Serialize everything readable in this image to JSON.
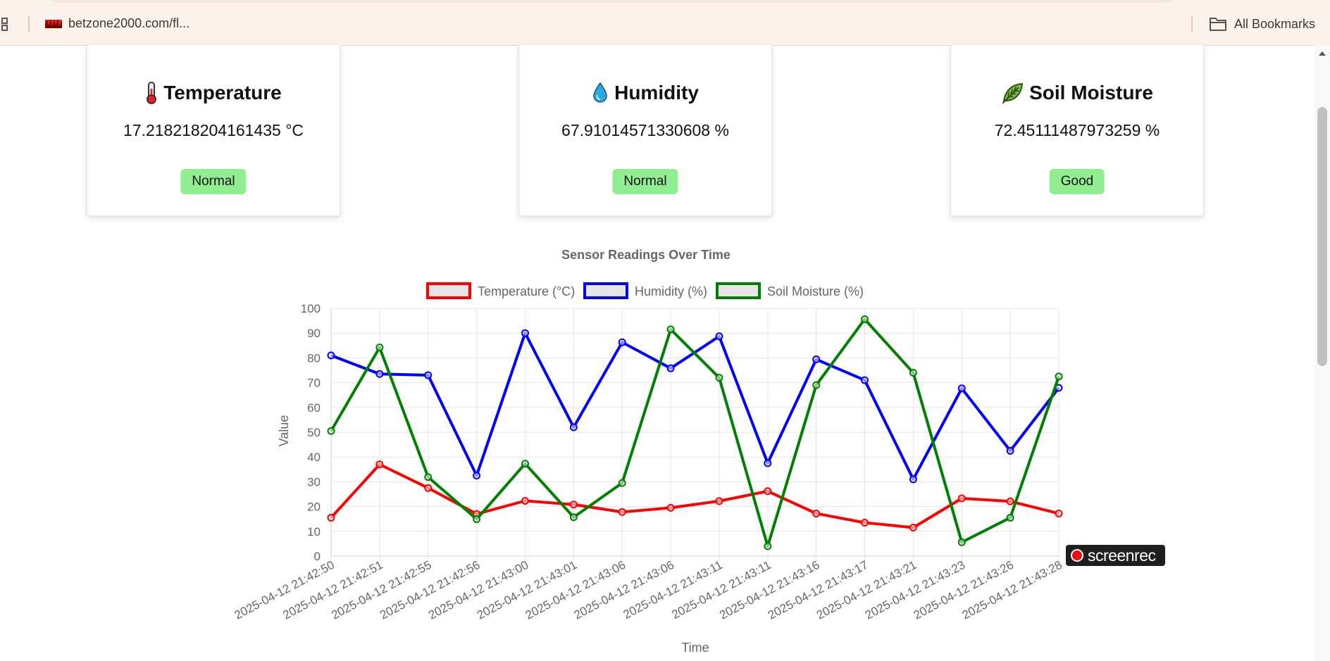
{
  "browser": {
    "bookmark_link": "betzone2000.com/fl...",
    "all_bookmarks": "All Bookmarks"
  },
  "cards": [
    {
      "icon": "thermometer-icon",
      "title": "Temperature",
      "value": "17.218218204161435 °C",
      "status": "Normal"
    },
    {
      "icon": "water-drop-icon",
      "title": "Humidity",
      "value": "67.91014571330608 %",
      "status": "Normal"
    },
    {
      "icon": "leaf-icon",
      "title": "Soil Moisture",
      "value": "72.45111487973259 %",
      "status": "Good"
    }
  ],
  "watermark": "screenrec",
  "colors": {
    "badge": "#90ee90",
    "temperature": "#ff0000",
    "humidity": "#0000ff",
    "soil": "#008000"
  },
  "chart_data": {
    "type": "line",
    "title": "Sensor Readings Over Time",
    "xlabel": "Time",
    "ylabel": "Value",
    "ylim": [
      0,
      100
    ],
    "yticks": [
      0,
      10,
      20,
      30,
      40,
      50,
      60,
      70,
      80,
      90,
      100
    ],
    "grid": true,
    "legend_position": "top",
    "categories": [
      "2025-04-12 21:42:50",
      "2025-04-12 21:42:51",
      "2025-04-12 21:42:55",
      "2025-04-12 21:42:56",
      "2025-04-12 21:43:00",
      "2025-04-12 21:43:01",
      "2025-04-12 21:43:06",
      "2025-04-12 21:43:06",
      "2025-04-12 21:43:11",
      "2025-04-12 21:43:11",
      "2025-04-12 21:43:16",
      "2025-04-12 21:43:17",
      "2025-04-12 21:43:21",
      "2025-04-12 21:43:23",
      "2025-04-12 21:43:26",
      "2025-04-12 21:43:28"
    ],
    "series": [
      {
        "name": "Temperature (°C)",
        "color": "#ff0000",
        "values": [
          15.5,
          37,
          27.5,
          17,
          22.3,
          20.8,
          17.8,
          19.5,
          22.2,
          26.2,
          17.2,
          13.5,
          11.5,
          23.3,
          22.1,
          17.2
        ]
      },
      {
        "name": "Humidity (%)",
        "color": "#0000ff",
        "values": [
          81,
          73.5,
          73,
          32.5,
          90,
          52,
          86.3,
          75.8,
          88.7,
          37.5,
          79.4,
          71,
          31,
          67.7,
          42.5,
          67.9
        ]
      },
      {
        "name": "Soil Moisture (%)",
        "color": "#008000",
        "values": [
          50.5,
          84.2,
          31.9,
          14.9,
          37.3,
          15.7,
          29.5,
          91.5,
          72,
          4,
          69,
          95.6,
          74,
          5.6,
          15.5,
          72.5
        ]
      }
    ]
  }
}
